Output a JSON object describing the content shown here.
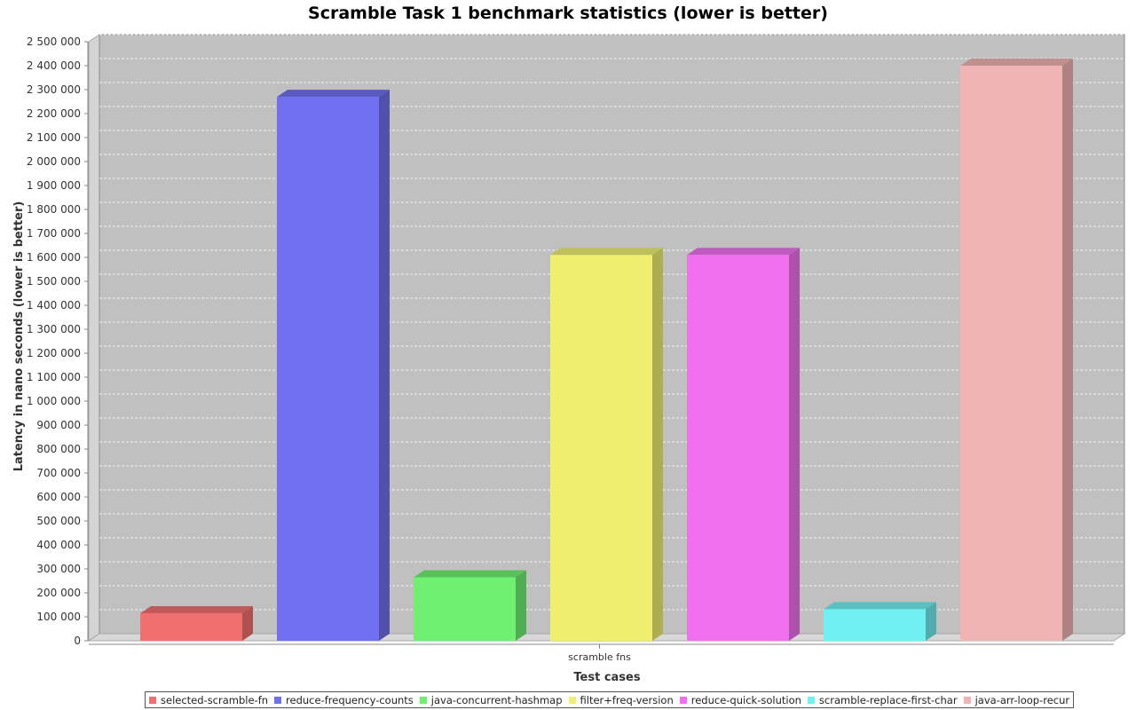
{
  "chart_data": {
    "type": "bar",
    "title": "Scramble Task 1 benchmark statistics (lower is better)",
    "xlabel": "Test cases",
    "ylabel": "Latency in nano seconds (lower is better)",
    "categories": [
      "scramble fns"
    ],
    "ylim": [
      0,
      2500000
    ],
    "y_ticks": [
      0,
      100000,
      200000,
      300000,
      400000,
      500000,
      600000,
      700000,
      800000,
      900000,
      1000000,
      1100000,
      1200000,
      1300000,
      1400000,
      1500000,
      1600000,
      1700000,
      1800000,
      1900000,
      2000000,
      2100000,
      2200000,
      2300000,
      2400000,
      2500000
    ],
    "y_tick_labels": [
      "0",
      "100 000",
      "200 000",
      "300 000",
      "400 000",
      "500 000",
      "600 000",
      "700 000",
      "800 000",
      "900 000",
      "1 000 000",
      "1 100 000",
      "1 200 000",
      "1 300 000",
      "1 400 000",
      "1 500 000",
      "1 600 000",
      "1 700 000",
      "1 800 000",
      "1 900 000",
      "2 000 000",
      "2 100 000",
      "2 200 000",
      "2 300 000",
      "2 400 000",
      "2 500 000"
    ],
    "grid": true,
    "legend_position": "bottom",
    "series": [
      {
        "name": "selected-scramble-fn",
        "values": [
          115000
        ],
        "color": "#f07070"
      },
      {
        "name": "reduce-frequency-counts",
        "values": [
          2270000
        ],
        "color": "#7070f0"
      },
      {
        "name": "java-concurrent-hashmap",
        "values": [
          265000
        ],
        "color": "#70f070"
      },
      {
        "name": "filter+freq-version",
        "values": [
          1610000
        ],
        "color": "#f0f070"
      },
      {
        "name": "reduce-quick-solution",
        "values": [
          1610000
        ],
        "color": "#f070f0"
      },
      {
        "name": "scramble-replace-first-char",
        "values": [
          132000
        ],
        "color": "#70f0f0"
      },
      {
        "name": "java-arr-loop-recur",
        "values": [
          2400000
        ],
        "color": "#f0b4b4"
      }
    ]
  }
}
